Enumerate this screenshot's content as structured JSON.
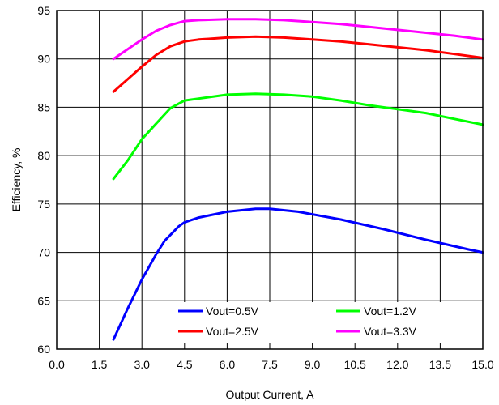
{
  "chart_data": {
    "type": "line",
    "title": "",
    "xlabel": "Output Current, A",
    "ylabel": "Efficiency, %",
    "xlim": [
      0,
      15
    ],
    "ylim": [
      60,
      95
    ],
    "xticks": [
      "0.0",
      "1.5",
      "3.0",
      "4.5",
      "6.0",
      "7.5",
      "9.0",
      "10.5",
      "12.0",
      "13.5",
      "15.0"
    ],
    "yticks": [
      "60",
      "65",
      "70",
      "75",
      "80",
      "85",
      "90",
      "95"
    ],
    "grid": true,
    "legend_placement": "bottom-inside",
    "series": [
      {
        "name": "Vout=0.5V",
        "color": "#0000ff",
        "x": [
          2.0,
          2.5,
          3.0,
          3.5,
          3.8,
          4.0,
          4.3,
          4.5,
          5.0,
          6.0,
          7.0,
          7.5,
          8.5,
          10.0,
          11.5,
          13.0,
          14.5,
          15.0
        ],
        "y": [
          61.0,
          64.2,
          67.2,
          69.8,
          71.2,
          71.8,
          72.7,
          73.1,
          73.6,
          74.2,
          74.5,
          74.5,
          74.2,
          73.4,
          72.4,
          71.3,
          70.3,
          70.0
        ]
      },
      {
        "name": "Vout=1.2V",
        "color": "#00ff00",
        "x": [
          2.0,
          2.5,
          3.0,
          3.5,
          4.0,
          4.5,
          5.0,
          6.0,
          7.0,
          8.0,
          9.0,
          10.0,
          11.0,
          12.0,
          13.0,
          14.0,
          15.0
        ],
        "y": [
          77.6,
          79.5,
          81.7,
          83.3,
          84.9,
          85.7,
          85.9,
          86.3,
          86.4,
          86.3,
          86.1,
          85.7,
          85.2,
          84.8,
          84.4,
          83.8,
          83.2
        ]
      },
      {
        "name": "Vout=2.5V",
        "color": "#ff0000",
        "x": [
          2.0,
          2.5,
          3.0,
          3.5,
          4.0,
          4.5,
          5.0,
          6.0,
          7.0,
          8.0,
          9.0,
          10.0,
          11.0,
          12.0,
          13.0,
          14.0,
          15.0
        ],
        "y": [
          86.6,
          87.9,
          89.2,
          90.4,
          91.3,
          91.8,
          92.0,
          92.2,
          92.3,
          92.2,
          92.0,
          91.8,
          91.5,
          91.2,
          90.9,
          90.5,
          90.1
        ]
      },
      {
        "name": "Vout=3.3V",
        "color": "#ff00ff",
        "x": [
          2.0,
          2.5,
          3.0,
          3.5,
          4.0,
          4.5,
          5.0,
          6.0,
          7.0,
          8.0,
          9.0,
          10.0,
          11.0,
          12.0,
          13.0,
          14.0,
          15.0
        ],
        "y": [
          90.0,
          91.0,
          92.0,
          92.9,
          93.5,
          93.9,
          94.0,
          94.1,
          94.1,
          94.0,
          93.8,
          93.6,
          93.3,
          93.0,
          92.7,
          92.4,
          92.0
        ]
      }
    ]
  }
}
